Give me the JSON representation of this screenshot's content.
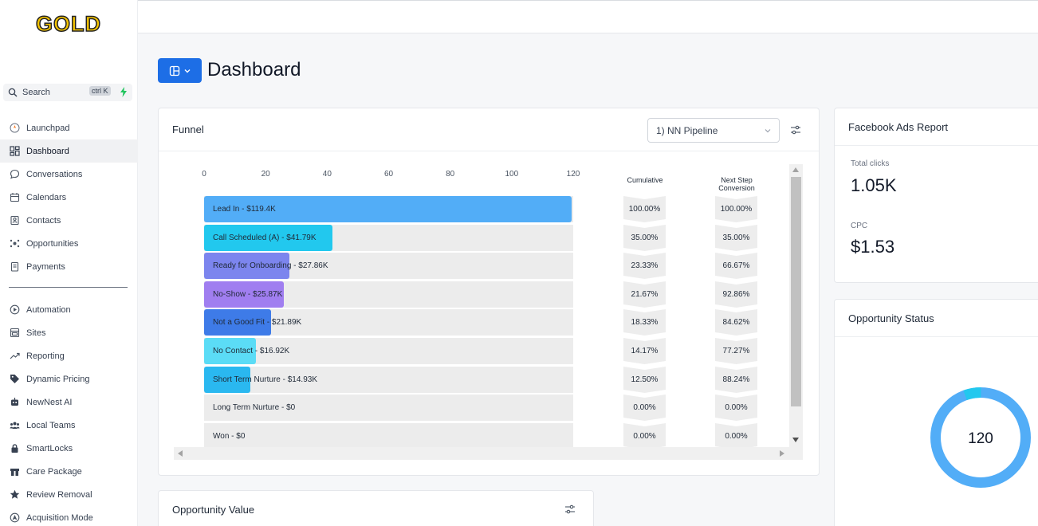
{
  "brand": {
    "logo_text": "GOLD",
    "logo_color": "#f5c400"
  },
  "search": {
    "placeholder": "Search",
    "shortcut": "ctrl K"
  },
  "sidebar": {
    "items": [
      {
        "label": "Launchpad",
        "icon": "launchpad-icon"
      },
      {
        "label": "Dashboard",
        "icon": "dashboard-icon",
        "active": true
      },
      {
        "label": "Conversations",
        "icon": "chat-icon"
      },
      {
        "label": "Calendars",
        "icon": "calendar-icon"
      },
      {
        "label": "Contacts",
        "icon": "contacts-icon"
      },
      {
        "label": "Opportunities",
        "icon": "opportunities-icon"
      },
      {
        "label": "Payments",
        "icon": "payments-icon"
      }
    ],
    "items2": [
      {
        "label": "Automation",
        "icon": "automation-icon"
      },
      {
        "label": "Sites",
        "icon": "sites-icon"
      },
      {
        "label": "Reporting",
        "icon": "reporting-icon"
      },
      {
        "label": "Dynamic Pricing",
        "icon": "tag-icon"
      },
      {
        "label": "NewNest AI",
        "icon": "robot-icon"
      },
      {
        "label": "Local Teams",
        "icon": "team-icon"
      },
      {
        "label": "SmartLocks",
        "icon": "lock-icon"
      },
      {
        "label": "Care Package",
        "icon": "package-icon"
      },
      {
        "label": "Review Removal",
        "icon": "star-icon"
      },
      {
        "label": "Acquisition Mode",
        "icon": "acquisition-icon"
      }
    ]
  },
  "header": {
    "title": "Dashboard"
  },
  "funnel": {
    "title": "Funnel",
    "pipeline": "1) NN Pipeline",
    "cumulative_header": "Cumulative",
    "next_step_header_1": "Next Step",
    "next_step_header_2": "Conversion"
  },
  "chart_data": {
    "type": "bar",
    "orientation": "horizontal",
    "xlim": [
      0,
      120
    ],
    "ticks": [
      "0",
      "20",
      "40",
      "60",
      "80",
      "100",
      "120"
    ],
    "categories": [
      "Lead In - $119.4K",
      "Call Scheduled (A) - $41.79K",
      "Ready for Onboarding - $27.86K",
      "No-Show  - $25.87K",
      "Not a Good Fit - $21.89K",
      "No Contact - $16.92K",
      "Short Term Nurture - $14.93K",
      "Long Term Nurture - $0",
      "Won - $0"
    ],
    "values": [
      119.4,
      41.79,
      27.86,
      25.87,
      21.89,
      16.92,
      14.93,
      0,
      0
    ],
    "colors": [
      "#52adf7",
      "#22c8ee",
      "#7c85ee",
      "#a07ef0",
      "#3e7be8",
      "#5bdcf6",
      "#2ab8f0",
      "#ececec",
      "#ececec"
    ],
    "cumulative": [
      "100.00%",
      "35.00%",
      "23.33%",
      "21.67%",
      "18.33%",
      "14.17%",
      "12.50%",
      "0.00%",
      "0.00%"
    ],
    "next_step_conversion": [
      "100.00%",
      "35.00%",
      "66.67%",
      "92.86%",
      "84.62%",
      "77.27%",
      "88.24%",
      "0.00%",
      "0.00%"
    ]
  },
  "facebook": {
    "title": "Facebook Ads Report",
    "clicks_label": "Total clicks",
    "clicks_value": "1.05K",
    "cpc_label": "CPC",
    "cpc_value": "$1.53"
  },
  "status": {
    "title": "Opportunity Status",
    "total": "120"
  },
  "opportunity_value": {
    "title": "Opportunity Value"
  },
  "colors": {
    "accent": "#1d6ee6",
    "donut": "#52adf7",
    "donut_small": "#22c8ee"
  }
}
